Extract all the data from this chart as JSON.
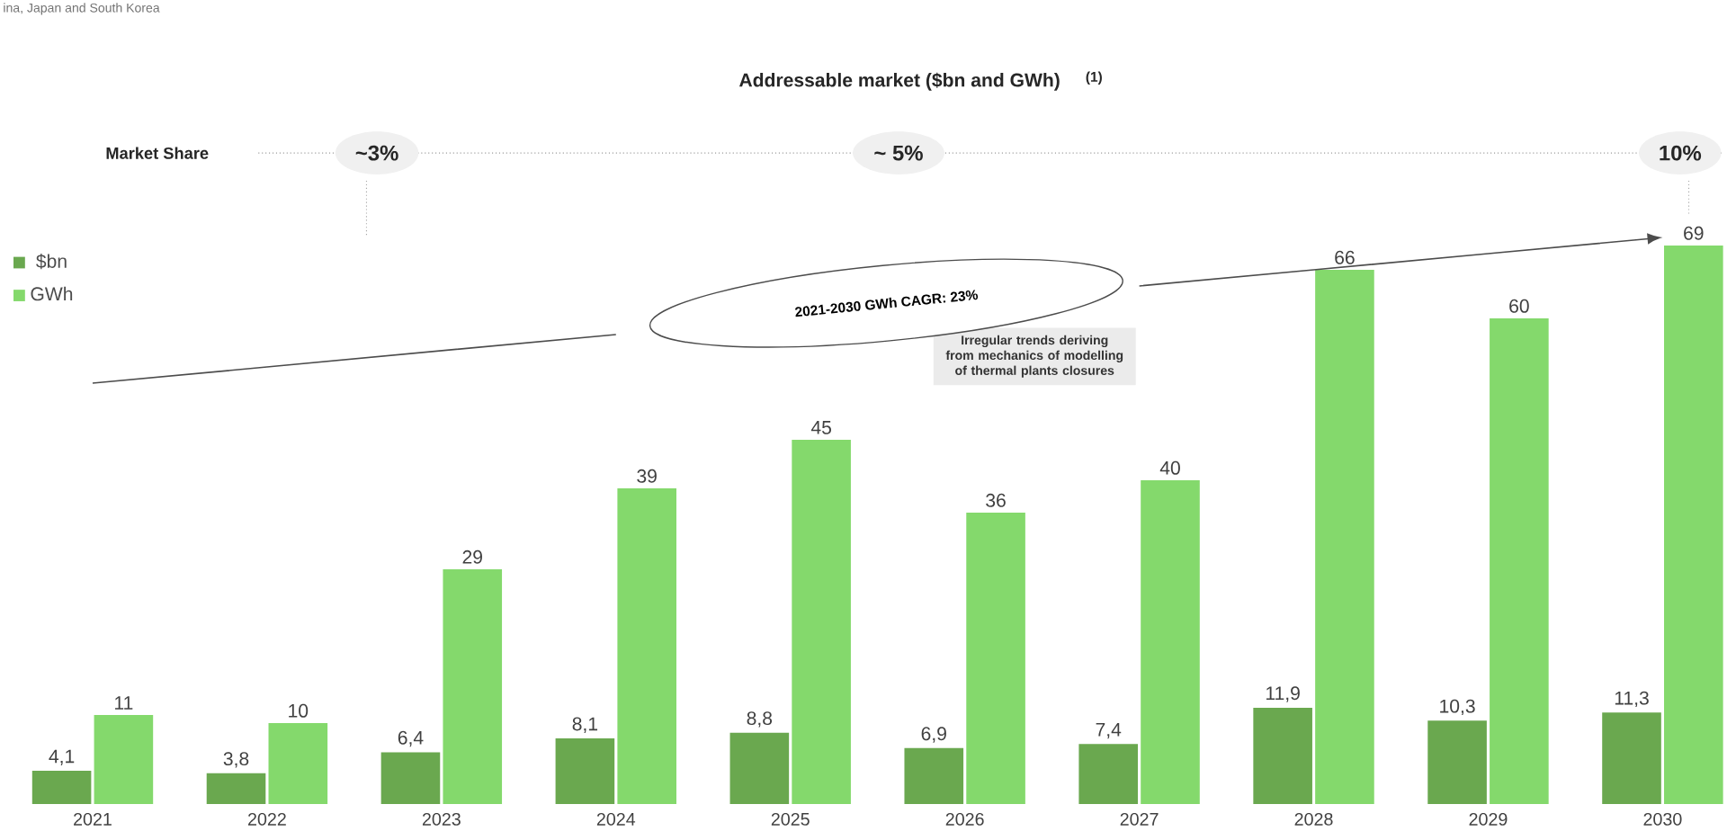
{
  "chart_data": {
    "type": "bar",
    "title": "Addressable market ($bn and GWh)",
    "subtitle": "(1)",
    "categories": [
      "2021",
      "2022",
      "2023",
      "2024",
      "2025",
      "2026",
      "2027",
      "2028",
      "2029",
      "2030"
    ],
    "series": [
      {
        "name": "$bn",
        "color": "#6aa84f",
        "values": [
          4.1,
          3.8,
          6.4,
          8.1,
          8.8,
          6.9,
          7.4,
          11.9,
          10.3,
          11.3
        ],
        "value_labels": [
          "4,1",
          "3,8",
          "6,4",
          "8,1",
          "8,8",
          "6,9",
          "7,4",
          "11,9",
          "10,3",
          "11,3"
        ]
      },
      {
        "name": "GWh",
        "color": "#84d96c",
        "values": [
          11,
          10,
          29,
          39,
          45,
          36,
          40,
          66,
          60,
          69
        ],
        "value_labels": [
          "11",
          "10",
          "29",
          "39",
          "45",
          "36",
          "40",
          "66",
          "60",
          "69"
        ]
      },
      {
        "type": "line",
        "color": "#4c4c4c",
        "values": [
          52,
          54,
          56,
          58,
          null,
          null,
          64,
          66,
          68,
          70
        ]
      }
    ],
    "legend": "top left",
    "annotations": [
      "ina, Japan and South Korea",
      "Market Share",
      "~3%",
      "~ 5%",
      "10%",
      "2021-2030 GWh CAGR: 23%",
      "Irregular trends deriving from mechanics of modelling of thermal plants closures"
    ]
  }
}
